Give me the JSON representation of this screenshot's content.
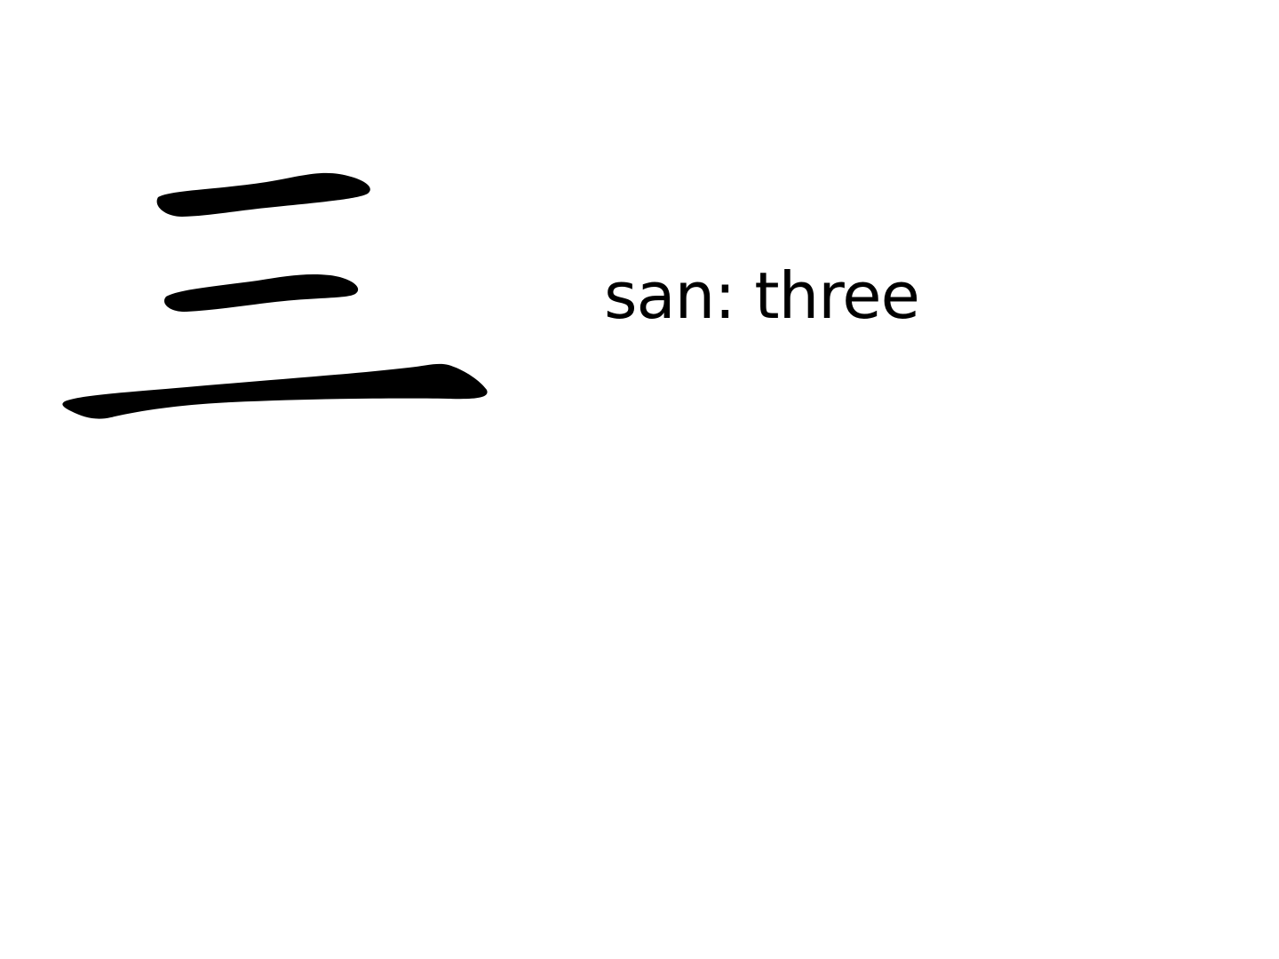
{
  "character": {
    "glyph": "三",
    "icon": "hanzi-san-strokes",
    "color": "#000000"
  },
  "caption": {
    "text": "san: three"
  },
  "background": "#ffffff"
}
